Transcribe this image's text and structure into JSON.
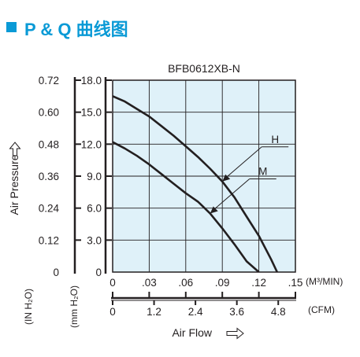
{
  "header": {
    "title": "P & Q 曲线图",
    "accent_color": "#0a9ad6"
  },
  "chart_data": {
    "type": "line",
    "title": "BFB0612XB-N",
    "xlabel": "Air Flow",
    "ylabel": "Air Pressure",
    "x_unit_primary": "(M³/MIN)",
    "x_unit_secondary": "(CFM)",
    "y_unit_inner": "(mm H₂O)",
    "y_unit_outer": "(IN H₂O)",
    "xlim": [
      0,
      0.15
    ],
    "ylim": [
      0,
      18
    ],
    "x_ticks": [
      0,
      0.03,
      0.06,
      0.09,
      0.12,
      0.15
    ],
    "x_tick_labels": [
      "0",
      ".03",
      ".06",
      ".09",
      ".12",
      ".15"
    ],
    "x2_ticks": [
      0,
      1.2,
      2.4,
      3.6,
      4.8
    ],
    "x2_tick_labels": [
      "0",
      "1.2",
      "2.4",
      "3.6",
      "4.8"
    ],
    "y_ticks": [
      0,
      3,
      6,
      9,
      12,
      15,
      18
    ],
    "y_tick_labels": [
      "0",
      "3.0",
      "6.0",
      "9.0",
      "12.0",
      "15.0",
      "18.0"
    ],
    "y2_tick_labels": [
      "0",
      "0.12",
      "0.24",
      "0.36",
      "0.48",
      "0.60",
      "0.72"
    ],
    "grid": true,
    "plot_background": "#dff1f9",
    "line_color": "#231f20",
    "series": [
      {
        "name": "H",
        "x": [
          0,
          0.01,
          0.02,
          0.03,
          0.04,
          0.05,
          0.06,
          0.07,
          0.08,
          0.09,
          0.1,
          0.11,
          0.12,
          0.13,
          0.135
        ],
        "y": [
          16.5,
          16.0,
          15.3,
          14.6,
          13.7,
          12.8,
          11.8,
          10.8,
          9.7,
          8.5,
          7.0,
          5.2,
          3.4,
          1.2,
          0
        ]
      },
      {
        "name": "M",
        "x": [
          0,
          0.01,
          0.02,
          0.03,
          0.04,
          0.05,
          0.06,
          0.07,
          0.08,
          0.09,
          0.1,
          0.11,
          0.12
        ],
        "y": [
          12.2,
          11.6,
          10.9,
          10.1,
          9.2,
          8.3,
          7.4,
          6.6,
          5.5,
          4.1,
          2.6,
          1.0,
          0
        ]
      }
    ]
  }
}
